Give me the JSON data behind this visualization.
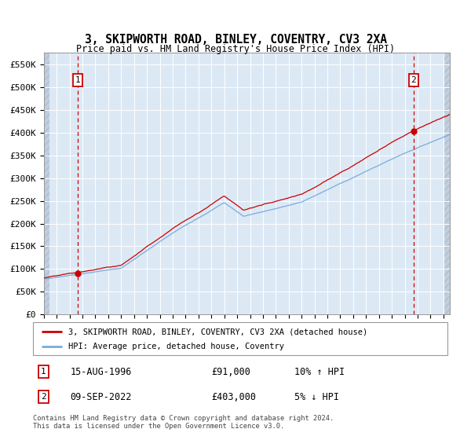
{
  "title": "3, SKIPWORTH ROAD, BINLEY, COVENTRY, CV3 2XA",
  "subtitle": "Price paid vs. HM Land Registry's House Price Index (HPI)",
  "legend_line1": "3, SKIPWORTH ROAD, BINLEY, COVENTRY, CV3 2XA (detached house)",
  "legend_line2": "HPI: Average price, detached house, Coventry",
  "annotation1_label": "1",
  "annotation1_date": "15-AUG-1996",
  "annotation1_price": "£91,000",
  "annotation1_hpi": "10% ↑ HPI",
  "annotation2_label": "2",
  "annotation2_date": "09-SEP-2022",
  "annotation2_price": "£403,000",
  "annotation2_hpi": "5% ↓ HPI",
  "footer": "Contains HM Land Registry data © Crown copyright and database right 2024.\nThis data is licensed under the Open Government Licence v3.0.",
  "hpi_color": "#7aaadd",
  "price_color": "#cc0000",
  "dot_color": "#cc0000",
  "bg_color": "#dce9f5",
  "hatch_color": "#c0cfe0",
  "grid_color": "#ffffff",
  "annotation_box_color": "#cc0000",
  "dashed_line_color": "#cc0000",
  "ylim": [
    0,
    575000
  ],
  "ytick_values": [
    0,
    50000,
    100000,
    150000,
    200000,
    250000,
    300000,
    350000,
    400000,
    450000,
    500000,
    550000
  ],
  "sale1_year": 1996.625,
  "sale1_price": 91000,
  "sale2_year": 2022.69,
  "sale2_price": 403000,
  "xmin": 1994.0,
  "xmax": 2025.5
}
